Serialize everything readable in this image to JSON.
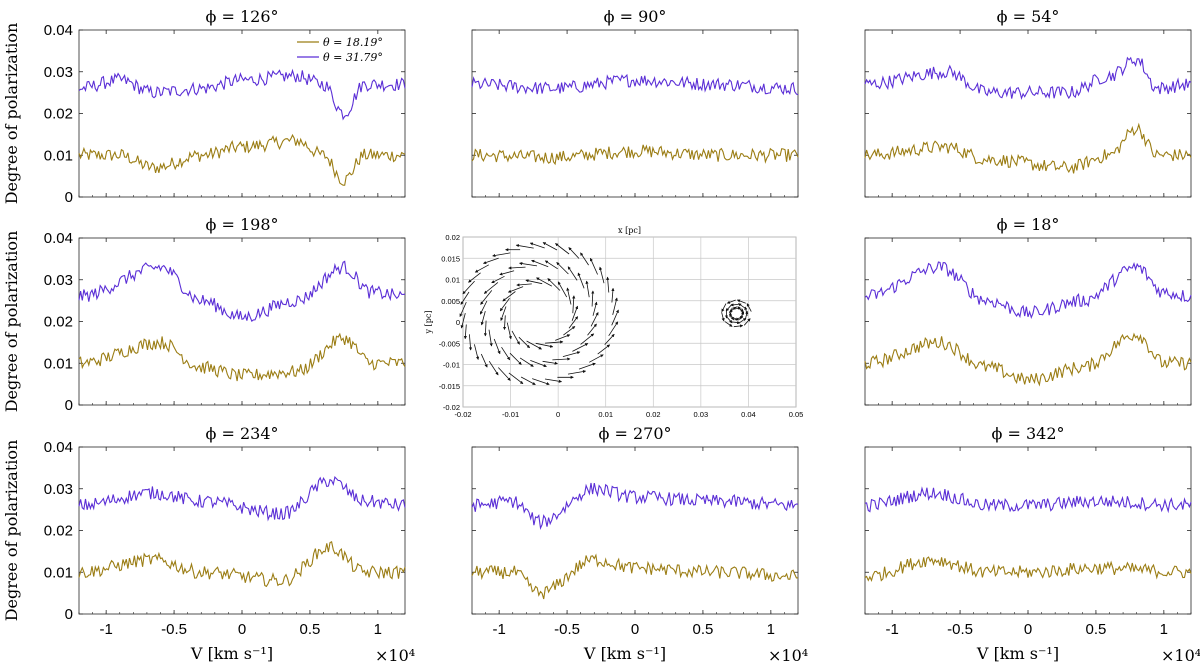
{
  "chart_data": {
    "type": "line",
    "ylabel": "Degree of polarization",
    "xlabel": "V [km s⁻¹]",
    "x_multiplier": "×10⁴",
    "xlim": [
      -1.2,
      1.2
    ],
    "ylim": [
      0,
      0.04
    ],
    "xticks": [
      "-1",
      "-0.5",
      "0",
      "0.5",
      "1"
    ],
    "yticks": [
      "0",
      "0.01",
      "0.02",
      "0.03",
      "0.04"
    ],
    "legend": {
      "location": "top-right",
      "entries": [
        "θ = 18.19°",
        "θ = 31.79°"
      ]
    },
    "series_colors": [
      "#9b7d14",
      "#5b2fd6"
    ],
    "panels": [
      {
        "title": "ϕ = 126°",
        "series": [
          {
            "name": "θ = 18.19°",
            "anchors": [
              [
                -1.2,
                0.01
              ],
              [
                -0.9,
                0.01
              ],
              [
                -0.65,
                0.007
              ],
              [
                -0.3,
                0.01
              ],
              [
                0,
                0.012
              ],
              [
                0.4,
                0.0135
              ],
              [
                0.6,
                0.01
              ],
              [
                0.75,
                0.004
              ],
              [
                0.9,
                0.01
              ],
              [
                1.2,
                0.01
              ]
            ]
          },
          {
            "name": "θ = 31.79°",
            "anchors": [
              [
                -1.2,
                0.026
              ],
              [
                -0.9,
                0.028
              ],
              [
                -0.65,
                0.025
              ],
              [
                -0.3,
                0.026
              ],
              [
                0,
                0.028
              ],
              [
                0.4,
                0.029
              ],
              [
                0.6,
                0.027
              ],
              [
                0.75,
                0.02
              ],
              [
                0.9,
                0.027
              ],
              [
                1.2,
                0.027
              ]
            ]
          }
        ]
      },
      {
        "title": "ϕ = 90°",
        "series": [
          {
            "name": "θ = 18.19°",
            "anchors": [
              [
                -1.2,
                0.01
              ],
              [
                -0.6,
                0.0095
              ],
              [
                0,
                0.011
              ],
              [
                0.6,
                0.01
              ],
              [
                1.2,
                0.01
              ]
            ]
          },
          {
            "name": "θ = 31.79°",
            "anchors": [
              [
                -1.2,
                0.027
              ],
              [
                -0.6,
                0.026
              ],
              [
                0,
                0.028
              ],
              [
                0.6,
                0.027
              ],
              [
                1.2,
                0.026
              ]
            ]
          }
        ]
      },
      {
        "title": "ϕ = 54°",
        "series": [
          {
            "name": "θ = 18.19°",
            "anchors": [
              [
                -1.2,
                0.01
              ],
              [
                -0.6,
                0.012
              ],
              [
                -0.3,
                0.009
              ],
              [
                0.3,
                0.007
              ],
              [
                0.6,
                0.01
              ],
              [
                0.8,
                0.0165
              ],
              [
                0.95,
                0.01
              ],
              [
                1.2,
                0.01
              ]
            ]
          },
          {
            "name": "θ = 31.79°",
            "anchors": [
              [
                -1.2,
                0.027
              ],
              [
                -0.6,
                0.03
              ],
              [
                -0.3,
                0.025
              ],
              [
                0.3,
                0.025
              ],
              [
                0.6,
                0.029
              ],
              [
                0.8,
                0.033
              ],
              [
                0.95,
                0.026
              ],
              [
                1.2,
                0.027
              ]
            ]
          }
        ]
      },
      {
        "title": "ϕ = 198°",
        "series": [
          {
            "name": "θ = 18.19°",
            "anchors": [
              [
                -1.2,
                0.01
              ],
              [
                -0.6,
                0.015
              ],
              [
                -0.3,
                0.009
              ],
              [
                0,
                0.007
              ],
              [
                0.4,
                0.008
              ],
              [
                0.75,
                0.016
              ],
              [
                0.95,
                0.01
              ],
              [
                1.2,
                0.01
              ]
            ]
          },
          {
            "name": "θ = 31.79°",
            "anchors": [
              [
                -1.2,
                0.026
              ],
              [
                -0.6,
                0.033
              ],
              [
                -0.3,
                0.025
              ],
              [
                0,
                0.021
              ],
              [
                0.4,
                0.025
              ],
              [
                0.75,
                0.033
              ],
              [
                0.95,
                0.027
              ],
              [
                1.2,
                0.026
              ]
            ]
          }
        ]
      },
      {
        "title": "ϕ = 18°",
        "series": [
          {
            "name": "θ = 18.19°",
            "anchors": [
              [
                -1.2,
                0.01
              ],
              [
                -0.65,
                0.015
              ],
              [
                -0.3,
                0.009
              ],
              [
                0,
                0.006
              ],
              [
                0.4,
                0.009
              ],
              [
                0.8,
                0.017
              ],
              [
                1.0,
                0.01
              ],
              [
                1.2,
                0.01
              ]
            ]
          },
          {
            "name": "θ = 31.79°",
            "anchors": [
              [
                -1.2,
                0.026
              ],
              [
                -0.65,
                0.033
              ],
              [
                -0.3,
                0.025
              ],
              [
                0,
                0.022
              ],
              [
                0.4,
                0.025
              ],
              [
                0.8,
                0.033
              ],
              [
                1.0,
                0.027
              ],
              [
                1.2,
                0.026
              ]
            ]
          }
        ]
      },
      {
        "title": "ϕ = 234°",
        "series": [
          {
            "name": "θ = 18.19°",
            "anchors": [
              [
                -1.2,
                0.01
              ],
              [
                -0.65,
                0.013
              ],
              [
                -0.3,
                0.01
              ],
              [
                0.3,
                0.008
              ],
              [
                0.65,
                0.016
              ],
              [
                0.9,
                0.01
              ],
              [
                1.2,
                0.01
              ]
            ]
          },
          {
            "name": "θ = 31.79°",
            "anchors": [
              [
                -1.2,
                0.026
              ],
              [
                -0.65,
                0.029
              ],
              [
                -0.3,
                0.027
              ],
              [
                0.3,
                0.024
              ],
              [
                0.65,
                0.032
              ],
              [
                0.9,
                0.027
              ],
              [
                1.2,
                0.026
              ]
            ]
          }
        ]
      },
      {
        "title": "ϕ = 270°",
        "series": [
          {
            "name": "θ = 18.19°",
            "anchors": [
              [
                -1.2,
                0.01
              ],
              [
                -0.9,
                0.01
              ],
              [
                -0.7,
                0.005
              ],
              [
                -0.3,
                0.013
              ],
              [
                0,
                0.011
              ],
              [
                0.6,
                0.01
              ],
              [
                1.2,
                0.009
              ]
            ]
          },
          {
            "name": "θ = 31.79°",
            "anchors": [
              [
                -1.2,
                0.026
              ],
              [
                -0.9,
                0.027
              ],
              [
                -0.7,
                0.022
              ],
              [
                -0.3,
                0.03
              ],
              [
                0,
                0.028
              ],
              [
                0.6,
                0.027
              ],
              [
                1.2,
                0.026
              ]
            ]
          }
        ]
      },
      {
        "title": "ϕ = 342°",
        "series": [
          {
            "name": "θ = 18.19°",
            "anchors": [
              [
                -1.2,
                0.009
              ],
              [
                -0.7,
                0.013
              ],
              [
                -0.3,
                0.01
              ],
              [
                0,
                0.01
              ],
              [
                0.5,
                0.011
              ],
              [
                1.2,
                0.01
              ]
            ]
          },
          {
            "name": "θ = 31.79°",
            "anchors": [
              [
                -1.2,
                0.026
              ],
              [
                -0.7,
                0.029
              ],
              [
                -0.3,
                0.026
              ],
              [
                0,
                0.026
              ],
              [
                0.5,
                0.027
              ],
              [
                1.2,
                0.026
              ]
            ]
          }
        ]
      }
    ],
    "inset": {
      "type": "quiver",
      "xlabel": "x [pc]",
      "ylabel": "y [pc]",
      "xlim": [
        -0.02,
        0.05
      ],
      "ylim": [
        -0.02,
        0.02
      ],
      "xticks": [
        "-0.02",
        "-0.01",
        "0",
        "0.01",
        "0.02",
        "0.03",
        "0.04",
        "0.05"
      ],
      "yticks": [
        "-0.02",
        "-0.015",
        "-0.01",
        "-0.005",
        "0",
        "0.005",
        "0.01",
        "0.015",
        "0.02"
      ],
      "large_ring": {
        "center": [
          -0.004,
          0.002
        ],
        "radius_inner": 0.0075,
        "radius_outer": 0.016
      },
      "small_ring": {
        "center": [
          0.0375,
          0.002
        ],
        "radius": 0.003
      }
    }
  }
}
